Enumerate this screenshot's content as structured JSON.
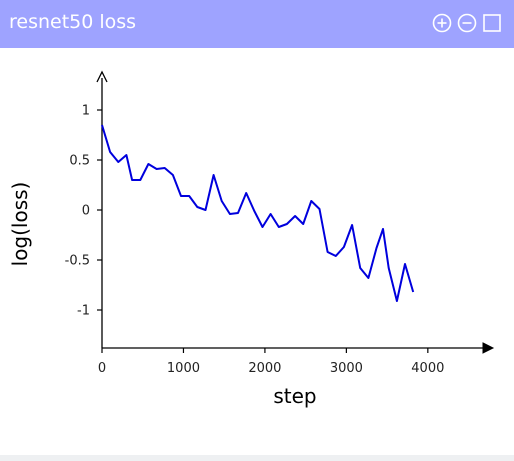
{
  "window": {
    "title": "resnet50 loss",
    "icons": [
      "zoom-in-icon",
      "zoom-out-icon",
      "maximize-icon"
    ],
    "titlebar_color": "#9ea3ff"
  },
  "chart_data": {
    "type": "line",
    "title": "",
    "xlabel": "step",
    "ylabel": "log(loss)",
    "xlim": [
      0,
      4800
    ],
    "ylim": [
      -1.38,
      1.38
    ],
    "x_ticks": [
      0,
      1000,
      2000,
      3000,
      4000
    ],
    "x_tick_labels": [
      "0",
      "1000",
      "2000",
      "3000",
      "4000"
    ],
    "y_ticks": [
      1,
      0.5,
      0,
      -0.5,
      -1
    ],
    "y_tick_labels": [
      "1",
      "0.5",
      "0",
      "-0.5",
      "-1"
    ],
    "grid": false,
    "line_color": "#0000dd",
    "series": [
      {
        "x": [
          0,
          100,
          200,
          300,
          370,
          470,
          570,
          670,
          770,
          870,
          970,
          1070,
          1170,
          1270,
          1370,
          1470,
          1570,
          1670,
          1770,
          1870,
          1970,
          2070,
          2170,
          2270,
          2370,
          2470,
          2570,
          2670,
          2770,
          2870,
          2970,
          3070,
          3170,
          3270,
          3370,
          3450,
          3520,
          3620,
          3720,
          3820
        ],
        "y": [
          0.85,
          0.58,
          0.48,
          0.55,
          0.3,
          0.3,
          0.46,
          0.41,
          0.42,
          0.35,
          0.14,
          0.14,
          0.03,
          0.0,
          0.35,
          0.09,
          -0.04,
          -0.03,
          0.17,
          -0.01,
          -0.17,
          -0.04,
          -0.17,
          -0.14,
          -0.06,
          -0.14,
          0.09,
          0.01,
          -0.42,
          -0.46,
          -0.37,
          -0.15,
          -0.58,
          -0.68,
          -0.38,
          -0.19,
          -0.58,
          -0.91,
          -0.54,
          -0.82
        ]
      }
    ]
  }
}
